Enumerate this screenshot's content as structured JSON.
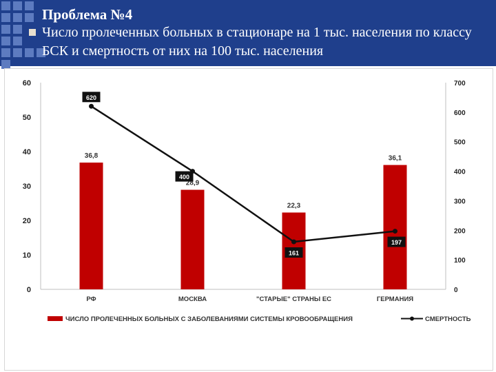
{
  "slide": {
    "title": "Проблема №4",
    "subtitle": "Число пролеченных больных в стационаре на 1 тыс. населения по классу БСК и смертность от них на 100 тыс. населения"
  },
  "colors": {
    "header_bg": "#1f3f8c",
    "header_squares": "#5d7bc0",
    "bar": "#c00000",
    "line": "#111111"
  },
  "chart_data": {
    "type": "bar",
    "categories": [
      "РФ",
      "МОСКВА",
      "\"СТАРЫЕ\" СТРАНЫ ЕС",
      "ГЕРМАНИЯ"
    ],
    "series": [
      {
        "name": "ЧИСЛО ПРОЛЕЧЕННЫХ БОЛЬНЫХ С ЗАБОЛЕВАНИЯМИ СИСТЕМЫ КРОВООБРАЩЕНИЯ",
        "type": "bar",
        "axis": "left",
        "values": [
          36.8,
          28.9,
          22.3,
          36.1
        ],
        "labels": [
          "36,8",
          "28,9",
          "22,3",
          "36,1"
        ]
      },
      {
        "name": "СМЕРТНОСТЬ",
        "type": "line",
        "axis": "right",
        "values": [
          620,
          400,
          161,
          197
        ],
        "labels": [
          "620",
          "400",
          "161",
          "197"
        ]
      }
    ],
    "ylim_left": [
      0,
      60
    ],
    "yticks_left": [
      0,
      10,
      20,
      30,
      40,
      50,
      60
    ],
    "ylim_right": [
      0,
      700
    ],
    "yticks_right": [
      0,
      100,
      200,
      300,
      400,
      500,
      600,
      700
    ],
    "grid": false,
    "legend_position": "bottom"
  }
}
